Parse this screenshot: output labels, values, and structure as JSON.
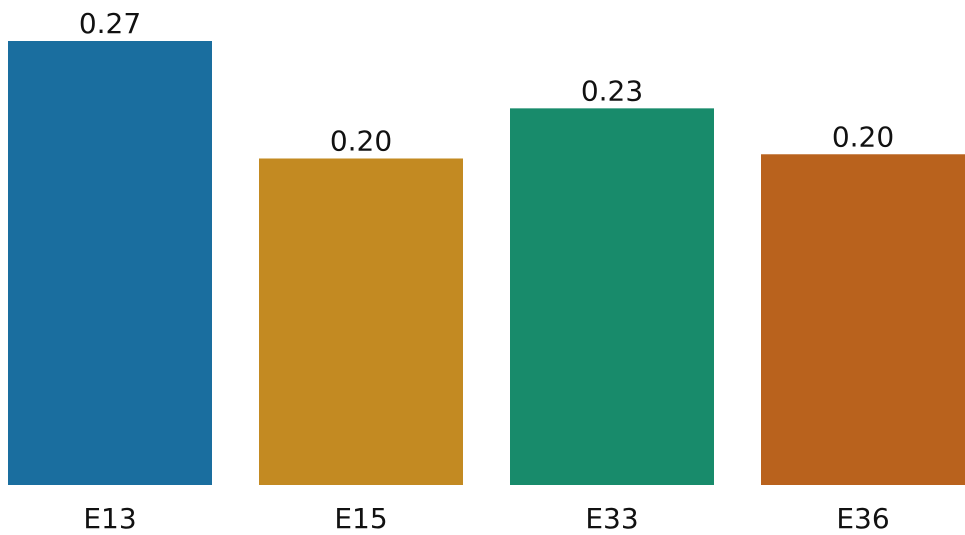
{
  "chart_data": {
    "type": "bar",
    "categories": [
      "E13",
      "E15",
      "E33",
      "E36"
    ],
    "values": [
      0.2736,
      0.2012,
      0.2321,
      0.2038
    ],
    "data_labels": [
      "0.27",
      "0.20",
      "0.23",
      "0.20"
    ],
    "colors": [
      "#1a6e9f",
      "#c38a22",
      "#188b6b",
      "#b9621d"
    ],
    "ylim": [
      0,
      0.2736
    ],
    "grid": false,
    "title": "",
    "xlabel": "",
    "ylabel": ""
  }
}
